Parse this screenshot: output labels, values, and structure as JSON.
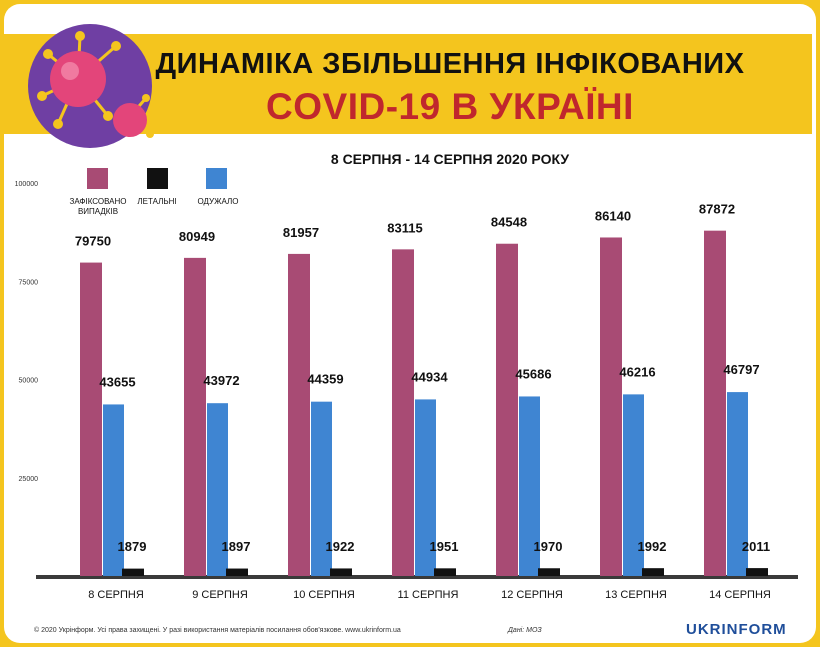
{
  "header": {
    "title_line1": "ДИНАМІКА ЗБІЛЬШЕННЯ ІНФІКОВАНИХ",
    "title_line2": "COVID-19 В УКРАЇНІ",
    "subtitle": "8 СЕРПНЯ - 14 СЕРПНЯ 2020 РОКУ"
  },
  "footer": {
    "copyright": "© 2020 Укрінформ. Усі права захищені. У разі використання матеріалів посилання обов'язкове. www.ukrinform.ua",
    "source": "Дані: МОЗ",
    "logo": "UKRINFORM"
  },
  "colors": {
    "confirmed": "#a84b74",
    "deaths": "#111111",
    "recovered": "#3f85d2",
    "background": "#f4c51e"
  },
  "chart_data": {
    "type": "bar",
    "categories": [
      "8 СЕРПНЯ",
      "9 СЕРПНЯ",
      "10 СЕРПНЯ",
      "11 СЕРПНЯ",
      "12 СЕРПНЯ",
      "13 СЕРПНЯ",
      "14 СЕРПНЯ"
    ],
    "series": [
      {
        "name": "ЗАФІКСОВАНО ВИПАДКІВ",
        "values": [
          79750,
          80949,
          81957,
          83115,
          84548,
          86140,
          87872
        ]
      },
      {
        "name": "ОДУЖАЛО",
        "values": [
          43655,
          43972,
          44359,
          44934,
          45686,
          46216,
          46797
        ]
      },
      {
        "name": "ЛЕТАЛЬНІ",
        "values": [
          1879,
          1897,
          1922,
          1951,
          1970,
          1992,
          2011
        ]
      }
    ],
    "y_ticks": [
      "100000",
      "75000",
      "50000",
      "25000"
    ],
    "ylim": [
      0,
      100000
    ],
    "legend_placement": "top-left",
    "legend": [
      {
        "label_line1": "ЗАФІКСОВАНО",
        "label_line2": "ВИПАДКІВ",
        "color": "#a84b74"
      },
      {
        "label_line1": "ЛЕТАЛЬНІ",
        "label_line2": "",
        "color": "#111111"
      },
      {
        "label_line1": "ОДУЖАЛО",
        "label_line2": "",
        "color": "#3f85d2"
      }
    ]
  }
}
